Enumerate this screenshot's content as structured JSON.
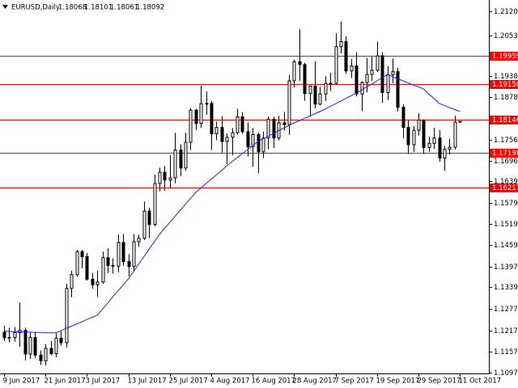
{
  "chart_data": {
    "type": "candlestick",
    "title": "EURUSD,Daily",
    "categories": [
      "9 Jun 2017",
      null,
      null,
      null,
      null,
      null,
      null,
      null,
      "21 Jun 2017",
      null,
      null,
      null,
      null,
      null,
      null,
      null,
      "3 Jul 2017",
      null,
      null,
      null,
      null,
      null,
      null,
      null,
      "13 Jul 2017",
      null,
      null,
      null,
      null,
      null,
      null,
      null,
      "25 Jul 2017",
      null,
      null,
      null,
      null,
      null,
      null,
      null,
      "4 Aug 2017",
      null,
      null,
      null,
      null,
      null,
      null,
      null,
      "16 Aug 2017",
      null,
      null,
      null,
      null,
      null,
      null,
      null,
      "28 Aug 2017",
      null,
      null,
      null,
      null,
      null,
      null,
      null,
      "7 Sep 2017",
      null,
      null,
      null,
      null,
      null,
      null,
      null,
      "19 Sep 2017",
      null,
      null,
      null,
      null,
      null,
      null,
      null,
      "29 Sep 2017",
      null,
      null,
      null,
      null,
      null,
      null,
      null,
      "11 Oct 2017"
    ],
    "open": [
      1.1212,
      1.1196,
      1.1197,
      1.1211,
      1.1217,
      1.115,
      1.1197,
      1.1147,
      1.1131,
      1.1166,
      1.1151,
      1.1195,
      1.1182,
      1.1336,
      1.1375,
      1.144,
      1.1426,
      1.1362,
      1.1346,
      1.1354,
      1.1423,
      1.1401,
      1.1399,
      1.1466,
      1.1412,
      1.1398,
      1.1468,
      1.1478,
      1.1555,
      1.1517,
      1.1633,
      1.1665,
      1.1643,
      1.1649,
      1.1728,
      1.1677,
      1.175,
      1.1841,
      1.1803,
      1.1859,
      1.186,
      1.1774,
      1.1792,
      1.1752,
      1.1764,
      1.1777,
      1.1822,
      1.178,
      1.1737,
      1.1772,
      1.1723,
      1.1762,
      1.1815,
      1.1762,
      1.1805,
      1.18,
      1.1924,
      1.1978,
      1.197,
      1.1888,
      1.1909,
      1.1858,
      1.1887,
      1.1917,
      1.1917,
      1.2021,
      1.2035,
      1.1952,
      1.1966,
      1.1887,
      1.1919,
      1.1942,
      1.1954,
      1.1995,
      1.1891,
      1.1941,
      1.195,
      1.1849,
      1.1792,
      1.1743,
      1.1784,
      1.1813,
      1.1735,
      1.1747,
      1.1762,
      1.1705,
      1.173,
      1.1736,
      1.18068
    ],
    "high": [
      1.123,
      1.1225,
      1.1226,
      1.1296,
      1.1225,
      1.1212,
      1.1213,
      1.116,
      1.1178,
      1.1187,
      1.1209,
      1.1214,
      1.1349,
      1.1386,
      1.1445,
      1.1445,
      1.1436,
      1.138,
      1.1387,
      1.144,
      1.1449,
      1.1421,
      1.1489,
      1.149,
      1.1433,
      1.149,
      1.1488,
      1.1582,
      1.1565,
      1.1659,
      1.1678,
      1.1683,
      1.1713,
      1.1777,
      1.1744,
      1.1777,
      1.1847,
      1.1845,
      1.191,
      1.1894,
      1.1867,
      1.1808,
      1.1824,
      1.1775,
      1.179,
      1.1845,
      1.1835,
      1.1806,
      1.179,
      1.1777,
      1.178,
      1.1823,
      1.1822,
      1.1825,
      1.1836,
      1.1941,
      1.1984,
      1.207,
      1.1975,
      1.1911,
      1.1979,
      1.1907,
      1.1937,
      1.1947,
      1.2059,
      1.2092,
      1.205,
      1.1986,
      1.2005,
      1.1923,
      1.1988,
      1.1992,
      1.2035,
      1.2005,
      1.1966,
      1.1987,
      1.1961,
      1.1858,
      1.1813,
      1.1796,
      1.1833,
      1.1815,
      1.1766,
      1.1791,
      1.1784,
      1.1739,
      1.176,
      1.1825,
      1.18101
    ],
    "low": [
      1.1187,
      1.1183,
      1.1185,
      1.1171,
      1.1132,
      1.1136,
      1.1139,
      1.1119,
      1.1118,
      1.1146,
      1.1141,
      1.1174,
      1.1168,
      1.1311,
      1.1369,
      1.1393,
      1.1358,
      1.1335,
      1.1312,
      1.1349,
      1.1379,
      1.1378,
      1.1381,
      1.14,
      1.137,
      1.1386,
      1.1454,
      1.1473,
      1.1479,
      1.1512,
      1.1611,
      1.1612,
      1.1621,
      1.1634,
      1.1654,
      1.1669,
      1.1728,
      1.1785,
      1.1791,
      1.1828,
      1.1728,
      1.1756,
      1.1721,
      1.1688,
      1.1713,
      1.1772,
      1.1774,
      1.171,
      1.168,
      1.1662,
      1.1705,
      1.173,
      1.1734,
      1.1755,
      1.1783,
      1.1771,
      1.1905,
      1.1924,
      1.1868,
      1.1823,
      1.1846,
      1.1855,
      1.1867,
      1.1895,
      1.1914,
      1.2002,
      1.1944,
      1.1932,
      1.188,
      1.1838,
      1.1891,
      1.1924,
      1.1949,
      1.1861,
      1.187,
      1.1917,
      1.1837,
      1.1761,
      1.1717,
      1.1723,
      1.1769,
      1.1717,
      1.1723,
      1.1731,
      1.1695,
      1.1669,
      1.1715,
      1.1729,
      1.18061
    ],
    "close": [
      1.1196,
      1.1197,
      1.1211,
      1.1217,
      1.115,
      1.1197,
      1.1147,
      1.1131,
      1.1166,
      1.1151,
      1.1195,
      1.1182,
      1.1336,
      1.1375,
      1.144,
      1.1426,
      1.1362,
      1.1346,
      1.1354,
      1.1423,
      1.1401,
      1.1399,
      1.1466,
      1.1412,
      1.1398,
      1.1468,
      1.1478,
      1.1555,
      1.1517,
      1.1633,
      1.1665,
      1.1643,
      1.1649,
      1.1728,
      1.1677,
      1.175,
      1.1841,
      1.1803,
      1.1859,
      1.186,
      1.1774,
      1.1792,
      1.1752,
      1.1764,
      1.1777,
      1.1822,
      1.178,
      1.1737,
      1.1772,
      1.1723,
      1.1762,
      1.1815,
      1.1762,
      1.1805,
      1.18,
      1.1924,
      1.1978,
      1.197,
      1.1888,
      1.1909,
      1.1858,
      1.1887,
      1.1917,
      1.1917,
      1.2021,
      1.2035,
      1.1952,
      1.1966,
      1.1887,
      1.1919,
      1.1942,
      1.1954,
      1.1995,
      1.1891,
      1.1941,
      1.195,
      1.1849,
      1.1792,
      1.1743,
      1.1784,
      1.1813,
      1.1735,
      1.1747,
      1.1762,
      1.1705,
      1.173,
      1.1736,
      1.1807,
      1.18092
    ],
    "up_color": "#ffffff",
    "down_color": "#000000",
    "outline_color": "#000000",
    "ma": {
      "color": "#1f1fff",
      "values": [
        1.1215,
        1.1214,
        1.1213,
        1.1213,
        1.1212,
        1.1212,
        1.1211,
        1.1211,
        1.121,
        1.121,
        1.121,
        1.1216,
        1.1223,
        1.1229,
        1.1235,
        1.1241,
        1.1248,
        1.1254,
        1.126,
        1.1277,
        1.1294,
        1.1312,
        1.1329,
        1.1346,
        1.1363,
        1.1384,
        1.1405,
        1.1426,
        1.1447,
        1.1468,
        1.1489,
        1.1506,
        1.1523,
        1.154,
        1.1557,
        1.1574,
        1.1591,
        1.1608,
        1.162,
        1.1633,
        1.1645,
        1.1658,
        1.167,
        1.1683,
        1.1695,
        1.1706,
        1.1718,
        1.1729,
        1.1741,
        1.1752,
        1.176,
        1.1767,
        1.1775,
        1.1783,
        1.179,
        1.1798,
        1.1805,
        1.1811,
        1.1818,
        1.1824,
        1.1831,
        1.1837,
        1.1844,
        1.1852,
        1.1859,
        1.1867,
        1.1874,
        1.1882,
        1.1889,
        1.1898,
        1.1907,
        1.1915,
        1.1924,
        1.1933,
        1.1942,
        1.1936,
        1.193,
        1.1924,
        1.1918,
        1.1912,
        1.1907,
        1.1901,
        1.1887,
        1.1874,
        1.186,
        1.1854,
        1.1848,
        1.1843,
        1.1837
      ]
    },
    "levels": [
      1.19959,
      {
        "value": 1.1915,
        "label": "1.19150"
      },
      1.18146,
      1.17198,
      1.16217
    ],
    "level_color": "#ff0000",
    "ylim": [
      1.1095,
      1.2153
    ],
    "yticks": [
      1.21205,
      {
        "value": 1.2053,
        "label": "1.20530"
      },
      {
        "value": 1.1938,
        "label": "1.19380"
      },
      {
        "value": 1.1878,
        "label": "1.18780"
      },
      {
        "value": 1.1756,
        "label": "1.17560"
      },
      1.16965,
      {
        "value": 1.1639,
        "label": "1.16390"
      },
      {
        "value": 1.1579,
        "label": "1.15790"
      },
      {
        "value": 1.1519,
        "label": "1.15190"
      },
      {
        "value": 1.1459,
        "label": "1.14590"
      },
      1.13975,
      1.13395,
      1.12775,
      1.12175,
      1.11575,
      1.10975
    ],
    "grid": false
  }
}
